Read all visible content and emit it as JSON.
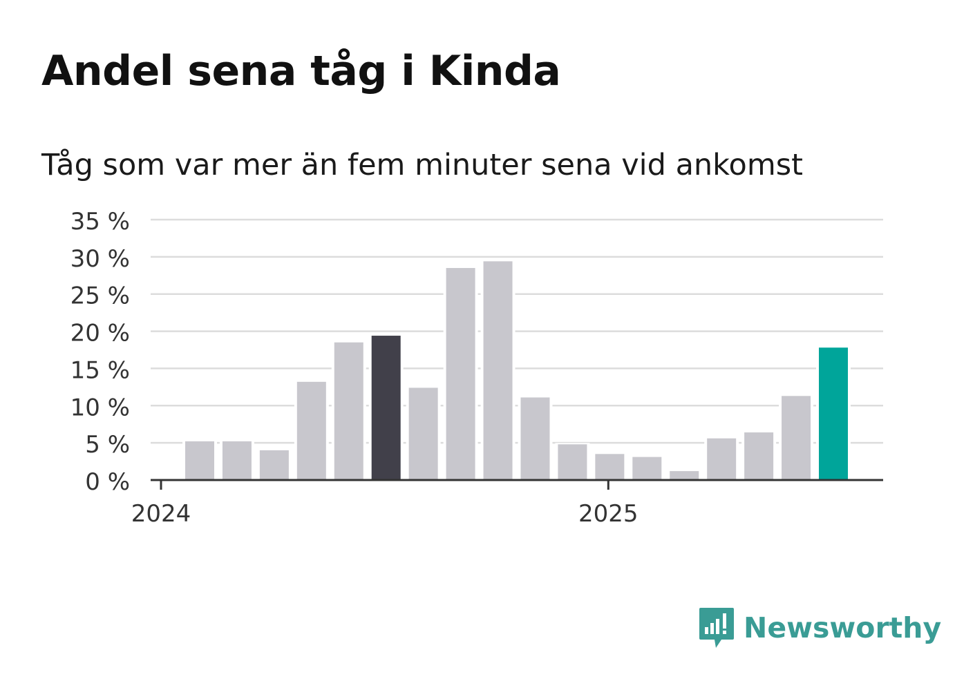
{
  "chart_data": {
    "type": "bar",
    "title": "Andel sena tåg i Kinda",
    "subtitle": "Tåg som var mer än fem minuter sena vid ankomst",
    "y_ticks": [
      "0 %",
      "5 %",
      "10 %",
      "15 %",
      "20 %",
      "25 %",
      "30 %",
      "35 %"
    ],
    "ylim": [
      0,
      35
    ],
    "x_ticks": [
      "2024",
      "2025"
    ],
    "grid": true,
    "values": [
      5.2,
      5.2,
      4.0,
      13.2,
      18.5,
      19.4,
      12.4,
      28.5,
      29.4,
      11.1,
      4.8,
      3.5,
      3.1,
      1.2,
      5.6,
      6.4,
      11.3,
      17.8
    ],
    "highlight": {
      "dark_index": 5,
      "accent_index": 17
    },
    "colors": {
      "default": "#c8c7cd",
      "dark": "#41404a",
      "accent": "#00a59a",
      "grid": "#dcdcdc",
      "axis": "#333333"
    }
  },
  "brand": {
    "name": "Newsworthy",
    "icon": "newsworthy-logo-icon",
    "color": "#3a9c95"
  }
}
